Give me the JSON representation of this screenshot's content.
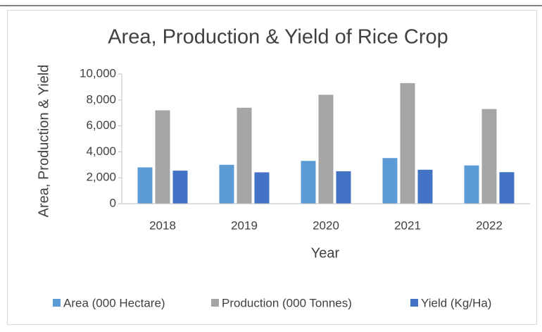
{
  "chart_data": {
    "type": "bar",
    "title": "Area, Production & Yield of Rice Crop",
    "x_label": "Year",
    "y_label": "Area, Production & Yield",
    "categories": [
      "2018",
      "2019",
      "2020",
      "2021",
      "2022"
    ],
    "series": [
      {
        "name": "Area (000 Hectare)",
        "color": "#5b9bd5",
        "values": [
          2800,
          3000,
          3300,
          3520,
          2950
        ]
      },
      {
        "name": "Production (000 Tonnes)",
        "color": "#a5a5a5",
        "values": [
          7200,
          7400,
          8400,
          9300,
          7300
        ]
      },
      {
        "name": "Yield (Kg/Ha)",
        "color": "#4472c4",
        "values": [
          2550,
          2420,
          2500,
          2620,
          2430
        ]
      }
    ],
    "ylim": [
      0,
      10000
    ],
    "yticks": [
      0,
      {
        "value": 2000,
        "label": "2,000"
      },
      {
        "value": 4000,
        "label": "4,000"
      },
      {
        "value": 6000,
        "label": "6,000"
      },
      {
        "value": 8000,
        "label": "8,000"
      },
      {
        "value": 10000,
        "label": "10,000"
      }
    ],
    "grid": false,
    "legend": "bottom"
  }
}
